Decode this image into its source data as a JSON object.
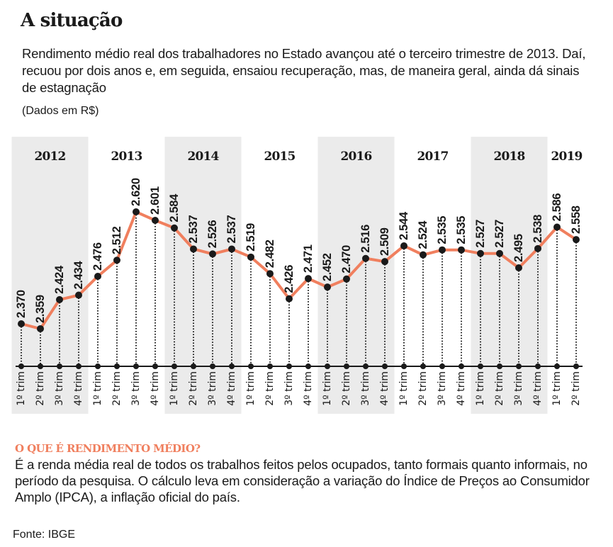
{
  "header": {
    "title": "A situação",
    "subtitle": "Rendimento médio real dos trabalhadores no Estado avançou até o terceiro trimestre de 2013. Daí, recuou por dois anos e, em seguida, ensaiou recuperação, mas, de maneira geral, ainda dá sinais de estagnação",
    "unit_note": "(Dados em R$)"
  },
  "note": {
    "heading": "O QUE É RENDIMENTO MÉDIO?",
    "body": "É a renda média real de todos os trabalhos feitos pelos ocupados, tanto formais quanto informais, no período da pesquisa. O cálculo leva em consideração a variação do Índice de Preços ao Consumidor Amplo (IPCA), a inflação oficial do país."
  },
  "source": "Fonte: IBGE",
  "colors": {
    "line": "#f07f5e",
    "band": "#ebebeb",
    "dot": "#1a1a1a",
    "accent_heading": "#f07f5e"
  },
  "chart_data": {
    "type": "line",
    "title": "Rendimento médio real",
    "xlabel": "",
    "ylabel": "R$",
    "years": [
      "2012",
      "2013",
      "2014",
      "2015",
      "2016",
      "2017",
      "2018",
      "2019"
    ],
    "shaded_years": [
      "2012",
      "2014",
      "2016",
      "2018"
    ],
    "quarter_labels": [
      "1º trim",
      "2º trim",
      "3º trim",
      "4º trim"
    ],
    "x": [
      "2012 1º trim",
      "2012 2º trim",
      "2012 3º trim",
      "2012 4º trim",
      "2013 1º trim",
      "2013 2º trim",
      "2013 3º trim",
      "2013 4º trim",
      "2014 1º trim",
      "2014 2º trim",
      "2014 3º trim",
      "2014 4º trim",
      "2015 1º trim",
      "2015 2º trim",
      "2015 3º trim",
      "2015 4º trim",
      "2016 1º trim",
      "2016 2º trim",
      "2016 3º trim",
      "2016 4º trim",
      "2017 1º trim",
      "2017 2º trim",
      "2017 3º trim",
      "2017 4º trim",
      "2018 1º trim",
      "2018 2º trim",
      "2018 3º trim",
      "2018 4º trim",
      "2019 1º trim",
      "2019 2º trim"
    ],
    "tick_labels": [
      "1º trim",
      "2º trim",
      "3º trim",
      "4º trim",
      "1º trim",
      "2º trim",
      "3º trim",
      "4º trim",
      "1º trim",
      "2º trim",
      "3º trim",
      "4º trim",
      "1º trim",
      "2º trim",
      "3º trim",
      "4º trim",
      "1º trim",
      "2º trim",
      "3º trim",
      "4º trim",
      "1º trim",
      "2º trim",
      "3º trim",
      "4º trim",
      "1º trim",
      "2º trim",
      "3º trim",
      "4º trim",
      "1º trim",
      "2º trim"
    ],
    "values": [
      2370,
      2359,
      2424,
      2434,
      2476,
      2512,
      2620,
      2601,
      2584,
      2537,
      2526,
      2537,
      2519,
      2482,
      2426,
      2471,
      2452,
      2470,
      2516,
      2509,
      2544,
      2524,
      2535,
      2535,
      2527,
      2527,
      2495,
      2538,
      2586,
      2558
    ],
    "value_labels": [
      "2.370",
      "2.359",
      "2.424",
      "2.434",
      "2.476",
      "2.512",
      "2.620",
      "2.601",
      "2.584",
      "2.537",
      "2.526",
      "2.537",
      "2.519",
      "2.482",
      "2.426",
      "2.471",
      "2.452",
      "2.470",
      "2.516",
      "2.509",
      "2.544",
      "2.524",
      "2.535",
      "2.535",
      "2.527",
      "2.527",
      "2.495",
      "2.538",
      "2.586",
      "2.558"
    ],
    "grid": false,
    "legend": "none"
  }
}
